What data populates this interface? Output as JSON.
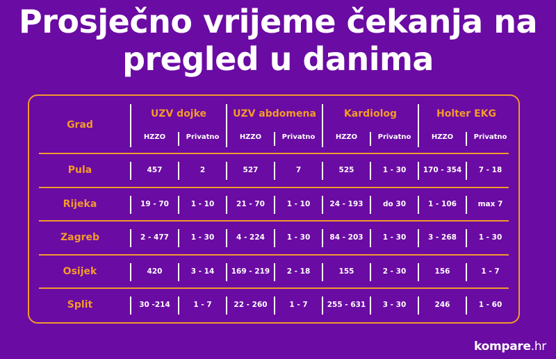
{
  "title_line1": "Prosječno vrijeme čekanja na",
  "title_line2": "pregled u danima",
  "header": {
    "city_col": "Grad",
    "groups": [
      {
        "label": "UZV dojke",
        "sub1": "HZZO",
        "sub2": "Privatno"
      },
      {
        "label": "UZV abdomena",
        "sub1": "HZZO",
        "sub2": "Privatno"
      },
      {
        "label": "Kardiolog",
        "sub1": "HZZO",
        "sub2": "Privatno"
      },
      {
        "label": "Holter EKG",
        "sub1": "HZZO",
        "sub2": "Privatno"
      }
    ]
  },
  "rows": [
    {
      "city": "Pula",
      "values": [
        "457",
        "2",
        "527",
        "7",
        "525",
        "1 - 30",
        "170 - 354",
        "7 - 18"
      ]
    },
    {
      "city": "Rijeka",
      "values": [
        "19 - 70",
        "1 - 10",
        "21 - 70",
        "1 - 10",
        "24 - 193",
        "do 30",
        "1 - 106",
        "max 7"
      ]
    },
    {
      "city": "Zagreb",
      "values": [
        "2 - 477",
        "1 - 30",
        "4 - 224",
        "1 - 30",
        "84 - 203",
        "1 - 30",
        "3 - 268",
        "1 - 30"
      ]
    },
    {
      "city": "Osijek",
      "values": [
        "420",
        "3 - 14",
        "169 - 219",
        "2 - 18",
        "155",
        "2 - 30",
        "156",
        "1 - 7"
      ]
    },
    {
      "city": "Split",
      "values": [
        "30 -214",
        "1 - 7",
        "22 - 260",
        "1 - 7",
        "255 - 631",
        "3 - 30",
        "246",
        "1 - 60"
      ]
    }
  ],
  "logo": {
    "brand": "kompare",
    "tld": ".hr"
  },
  "colors": {
    "background": "#6a0ba3",
    "accent": "#f39a2b",
    "text": "#ffffff"
  }
}
